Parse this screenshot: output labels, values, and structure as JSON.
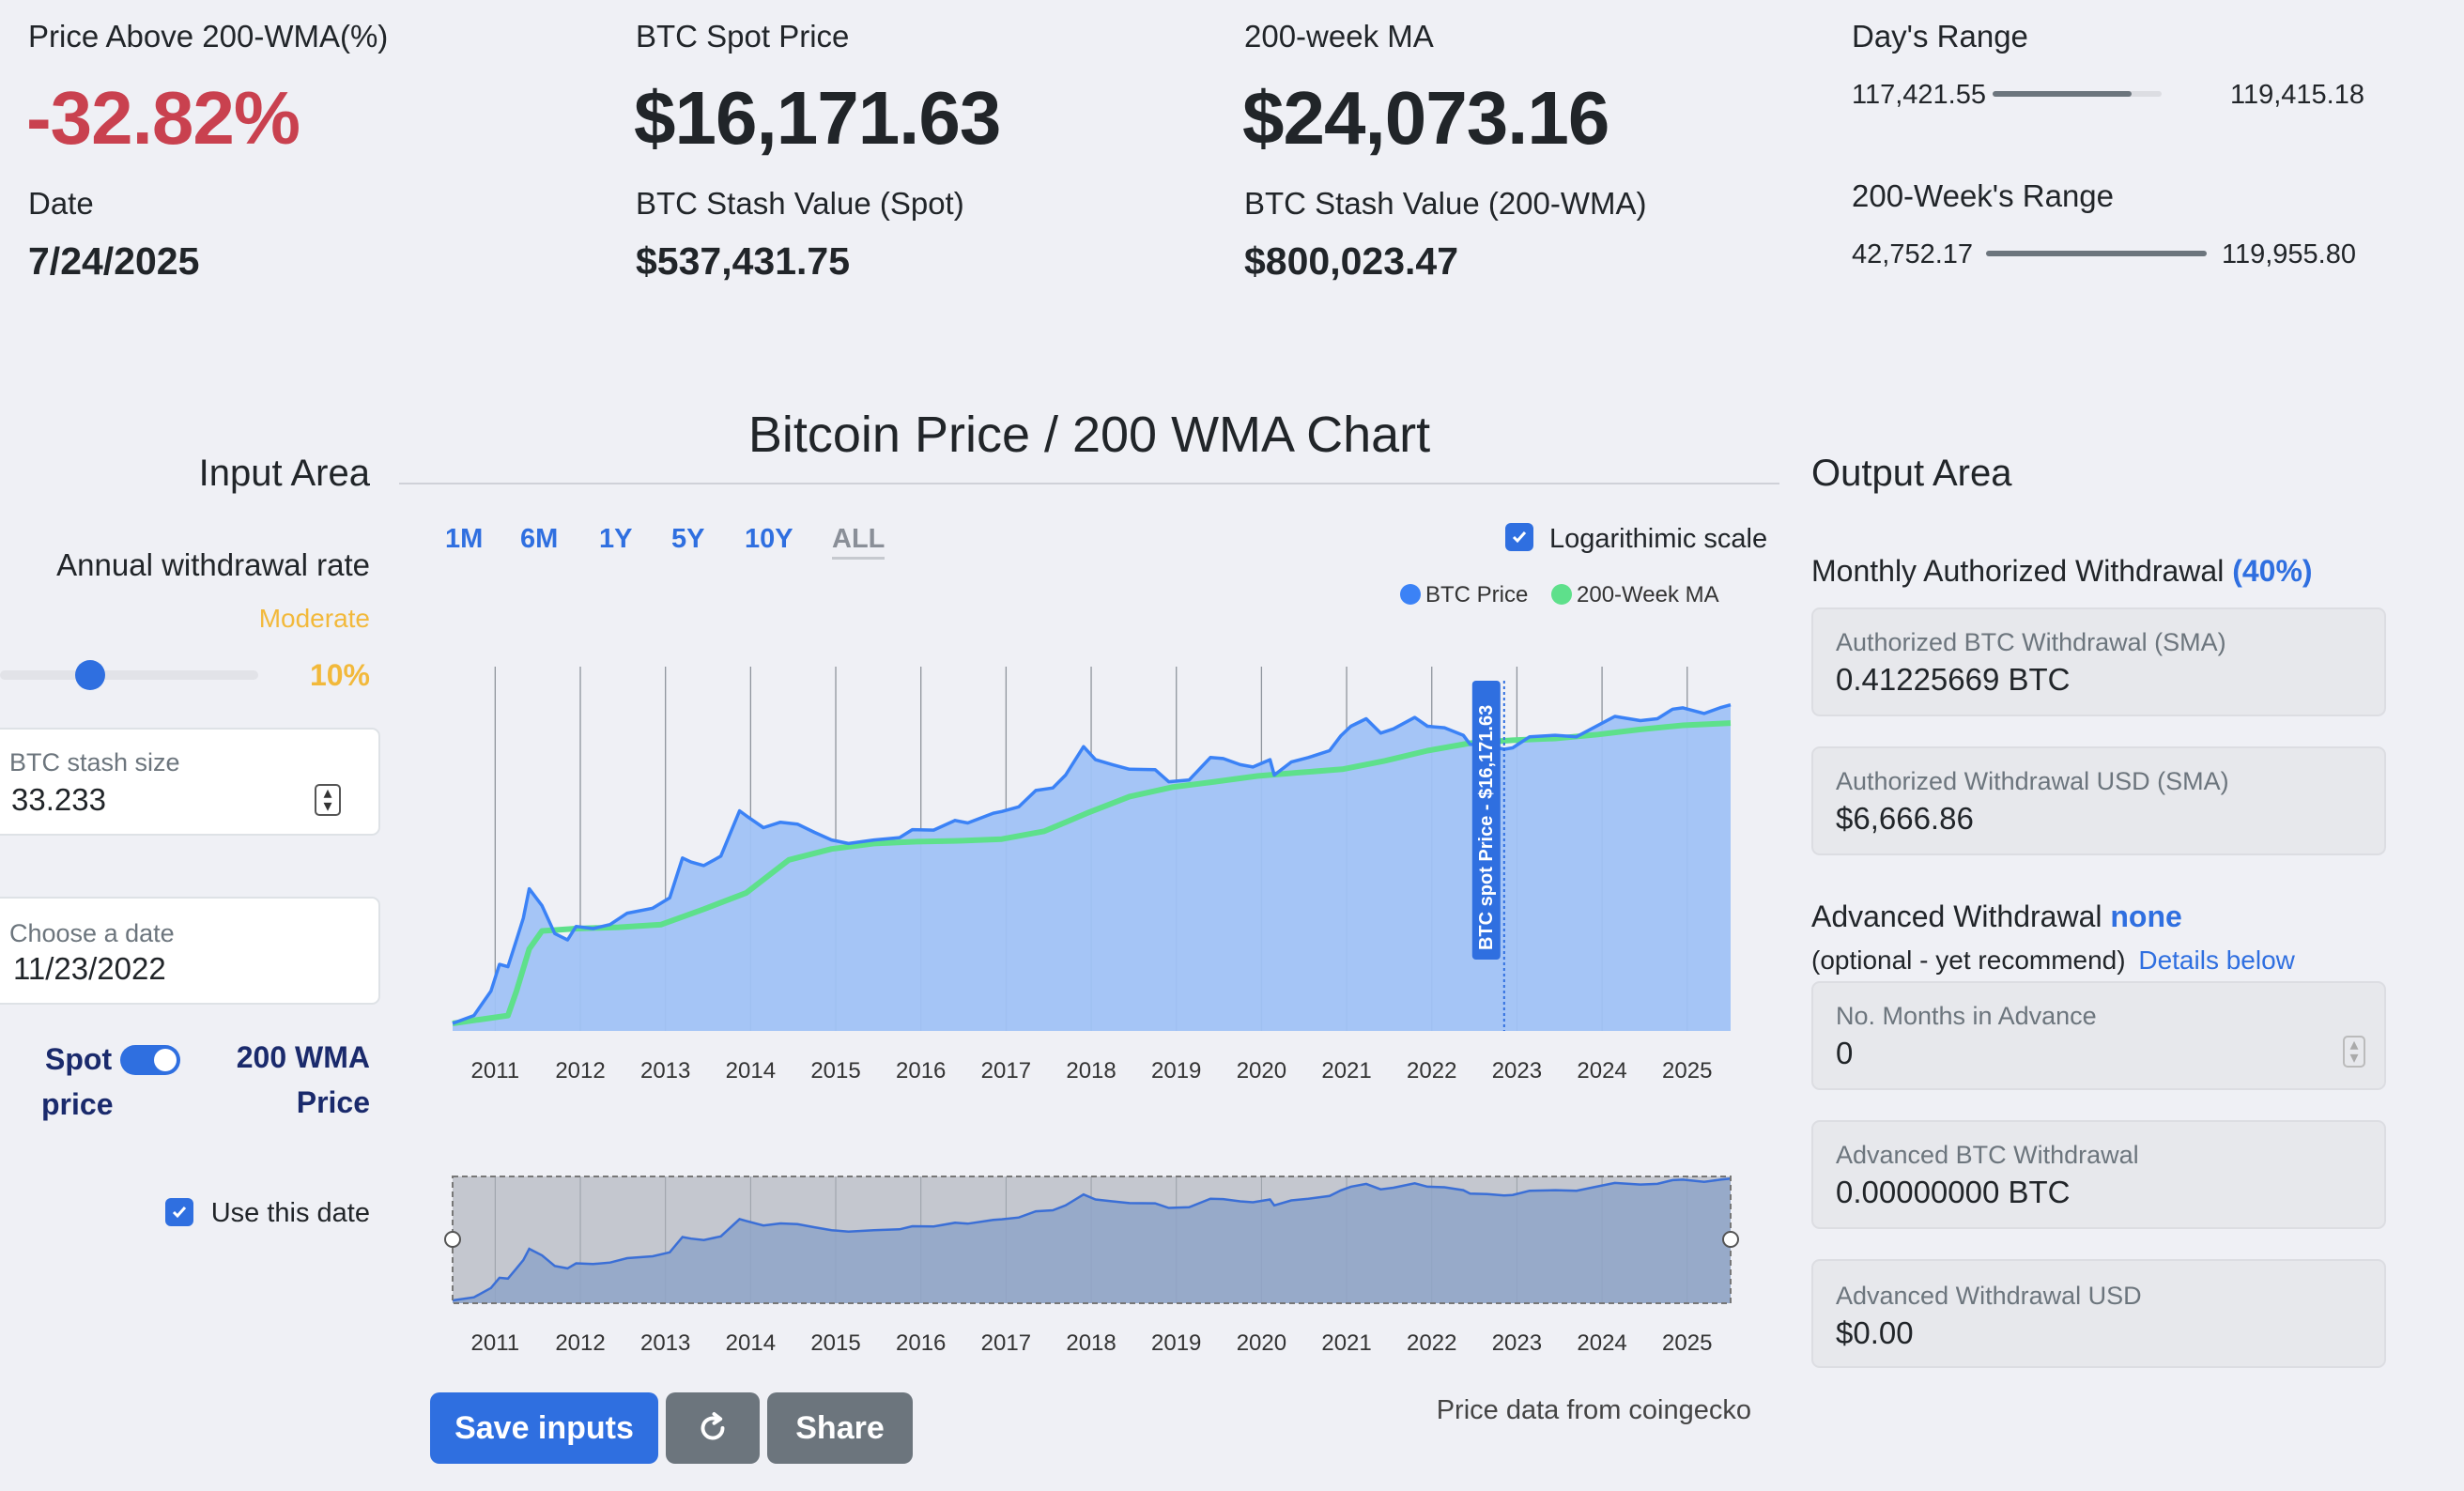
{
  "stats": {
    "price_above_label": "Price Above 200-WMA(%)",
    "price_above_value": "-32.82%",
    "date_label": "Date",
    "date_value": "7/24/2025",
    "spot_label": "BTC Spot Price",
    "spot_value": "$16,171.63",
    "stash_spot_label": "BTC Stash Value (Spot)",
    "stash_spot_value": "$537,431.75",
    "wma_label": "200-week MA",
    "wma_value": "$24,073.16",
    "stash_wma_label": "BTC Stash Value (200-WMA)",
    "stash_wma_value": "$800,023.47",
    "day_range_label": "Day's Range",
    "day_range_low": "117,421.55",
    "day_range_high": "119,415.18",
    "day_range_fill": 0.82,
    "week_range_label": "200-Week's Range",
    "week_range_low": "42,752.17",
    "week_range_high": "119,955.80",
    "week_range_fill": 1.0
  },
  "input_area": {
    "title": "Input Area",
    "withdrawal_label": "Annual withdrawal rate",
    "risk_label": "Moderate",
    "rate_value": "10%",
    "slider_fraction": 0.35,
    "stash_label": "BTC stash size",
    "stash_value": "33.233",
    "date_label": "Choose a date",
    "date_value": "11/23/2022",
    "toggle_left_1": "Spot",
    "toggle_left_2": "price",
    "toggle_right_1": "200 WMA",
    "toggle_right_2": "Price",
    "use_date_label": "Use this date"
  },
  "chart_header": {
    "title": "Bitcoin Price / 200 WMA Chart",
    "timeframes": [
      "1M",
      "6M",
      "1Y",
      "5Y",
      "10Y",
      "ALL"
    ],
    "active_timeframe": "ALL",
    "log_label": "Logarithimic scale",
    "source": "Price data from coingecko"
  },
  "chart_data": {
    "type": "area",
    "scale": "log",
    "x_labels": [
      "2011",
      "2012",
      "2013",
      "2014",
      "2015",
      "2016",
      "2017",
      "2018",
      "2019",
      "2020",
      "2021",
      "2022",
      "2023",
      "2024",
      "2025"
    ],
    "legend": [
      "BTC Price",
      "200-Week MA"
    ],
    "marker_label": "BTC spot Price - $16,171.63",
    "marker_year": 2022.9,
    "series": [
      {
        "name": "BTC Price",
        "color": "#3b82f6",
        "points": [
          [
            2010.55,
            0.07
          ],
          [
            2010.8,
            0.1
          ],
          [
            2011.0,
            0.3
          ],
          [
            2011.1,
            1
          ],
          [
            2011.2,
            0.9
          ],
          [
            2011.3,
            3
          ],
          [
            2011.38,
            8
          ],
          [
            2011.45,
            30
          ],
          [
            2011.6,
            14
          ],
          [
            2011.75,
            4
          ],
          [
            2011.9,
            3
          ],
          [
            2012.0,
            5.5
          ],
          [
            2012.2,
            5
          ],
          [
            2012.4,
            6
          ],
          [
            2012.6,
            10
          ],
          [
            2012.9,
            12.5
          ],
          [
            2013.1,
            20
          ],
          [
            2013.25,
            120
          ],
          [
            2013.35,
            100
          ],
          [
            2013.5,
            85
          ],
          [
            2013.7,
            130
          ],
          [
            2013.92,
            1000
          ],
          [
            2014.0,
            800
          ],
          [
            2014.2,
            470
          ],
          [
            2014.4,
            600
          ],
          [
            2014.6,
            550
          ],
          [
            2014.8,
            380
          ],
          [
            2015.0,
            270
          ],
          [
            2015.2,
            230
          ],
          [
            2015.5,
            270
          ],
          [
            2015.8,
            300
          ],
          [
            2015.95,
            430
          ],
          [
            2016.2,
            420
          ],
          [
            2016.45,
            650
          ],
          [
            2016.6,
            580
          ],
          [
            2016.9,
            900
          ],
          [
            2017.0,
            970
          ],
          [
            2017.2,
            1200
          ],
          [
            2017.4,
            2500
          ],
          [
            2017.6,
            2800
          ],
          [
            2017.75,
            5000
          ],
          [
            2017.96,
            18000
          ],
          [
            2018.1,
            10000
          ],
          [
            2018.3,
            8000
          ],
          [
            2018.5,
            6500
          ],
          [
            2018.8,
            6400
          ],
          [
            2018.96,
            3700
          ],
          [
            2019.2,
            4000
          ],
          [
            2019.45,
            11000
          ],
          [
            2019.6,
            10500
          ],
          [
            2019.8,
            8000
          ],
          [
            2019.95,
            7200
          ],
          [
            2020.15,
            10000
          ],
          [
            2020.2,
            5000
          ],
          [
            2020.4,
            9000
          ],
          [
            2020.6,
            11000
          ],
          [
            2020.85,
            15000
          ],
          [
            2020.98,
            29000
          ],
          [
            2021.1,
            45000
          ],
          [
            2021.28,
            63000
          ],
          [
            2021.45,
            33000
          ],
          [
            2021.6,
            40000
          ],
          [
            2021.85,
            67000
          ],
          [
            2022.0,
            45000
          ],
          [
            2022.2,
            42000
          ],
          [
            2022.42,
            30000
          ],
          [
            2022.5,
            20000
          ],
          [
            2022.7,
            19000
          ],
          [
            2022.9,
            16000
          ],
          [
            2023.0,
            17000
          ],
          [
            2023.2,
            28000
          ],
          [
            2023.5,
            30000
          ],
          [
            2023.75,
            28000
          ],
          [
            2023.95,
            42000
          ],
          [
            2024.2,
            70000
          ],
          [
            2024.5,
            58000
          ],
          [
            2024.7,
            63000
          ],
          [
            2024.88,
            97000
          ],
          [
            2025.0,
            103000
          ],
          [
            2025.25,
            80000
          ],
          [
            2025.45,
            105000
          ],
          [
            2025.56,
            118000
          ]
        ]
      },
      {
        "name": "200-Week MA",
        "color": "#5ee08b",
        "points": [
          [
            2010.55,
            0.07
          ],
          [
            2011.2,
            0.1
          ],
          [
            2011.3,
            0.3
          ],
          [
            2011.45,
            2
          ],
          [
            2011.6,
            4.5
          ],
          [
            2012.0,
            5
          ],
          [
            2012.5,
            5.3
          ],
          [
            2013.0,
            6
          ],
          [
            2013.5,
            12
          ],
          [
            2014.0,
            25
          ],
          [
            2014.5,
            110
          ],
          [
            2015.0,
            180
          ],
          [
            2015.5,
            230
          ],
          [
            2016.0,
            250
          ],
          [
            2016.5,
            260
          ],
          [
            2017.0,
            280
          ],
          [
            2017.5,
            400
          ],
          [
            2018.0,
            900
          ],
          [
            2018.5,
            1900
          ],
          [
            2019.0,
            2900
          ],
          [
            2019.5,
            3700
          ],
          [
            2020.0,
            4800
          ],
          [
            2020.5,
            5600
          ],
          [
            2021.0,
            6500
          ],
          [
            2021.5,
            9500
          ],
          [
            2022.0,
            15000
          ],
          [
            2022.5,
            21000
          ],
          [
            2023.0,
            24000
          ],
          [
            2023.5,
            26000
          ],
          [
            2024.0,
            31000
          ],
          [
            2024.5,
            39000
          ],
          [
            2025.0,
            47000
          ],
          [
            2025.56,
            52000
          ]
        ]
      }
    ]
  },
  "output_area": {
    "title": "Output Area",
    "monthly_label": "Monthly Authorized Withdrawal",
    "monthly_pct": "(40%)",
    "btc_withdrawal_label": "Authorized BTC Withdrawal (SMA)",
    "btc_withdrawal_value": "0.41225669 BTC",
    "usd_withdrawal_label": "Authorized Withdrawal USD (SMA)",
    "usd_withdrawal_value": "$6,666.86",
    "advanced_label": "Advanced Withdrawal",
    "advanced_status": "none",
    "optional_text": "(optional - yet recommend)",
    "details_link": "Details below",
    "months_label": "No. Months in Advance",
    "months_value": "0",
    "adv_btc_label": "Advanced BTC Withdrawal",
    "adv_btc_value": "0.00000000 BTC",
    "adv_usd_label": "Advanced Withdrawal USD",
    "adv_usd_value": "$0.00"
  },
  "buttons": {
    "save": "Save inputs",
    "refresh_icon": "refresh-icon",
    "share": "Share"
  },
  "colors": {
    "accent": "#2f6fe0",
    "negative": "#c9414f",
    "warning": "#f2b93b",
    "btc_line": "#3b82f6",
    "btc_fill": "#a0c2f5",
    "wma_line": "#5ee08b"
  }
}
